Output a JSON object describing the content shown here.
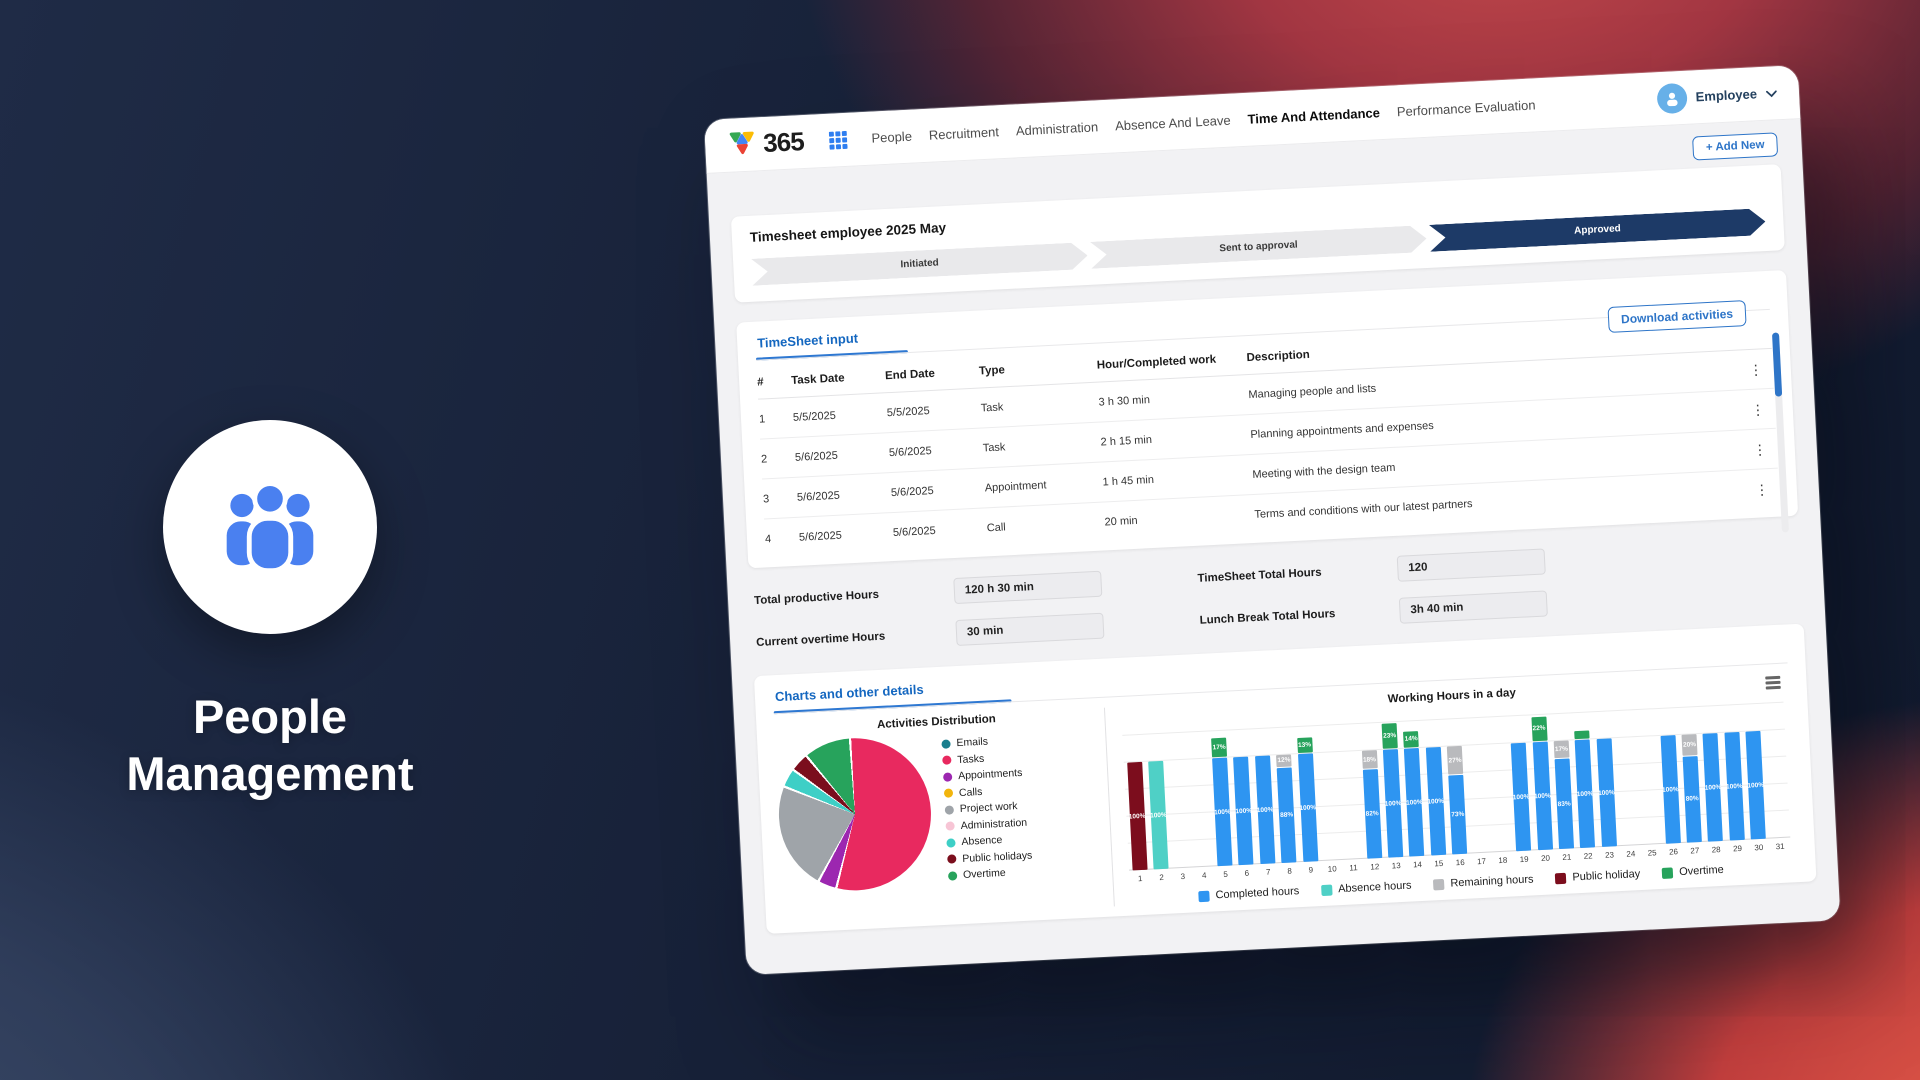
{
  "hero": {
    "title_line1": "People",
    "title_line2": "Management"
  },
  "window": {
    "brand": "365",
    "nav_items": [
      "People",
      "Recruitment",
      "Administration",
      "Absence And Leave",
      "Time And Attendance",
      "Performance Evaluation"
    ],
    "active_nav": "Time And Attendance",
    "user_menu": {
      "label": "Employee"
    },
    "add_new_label": "+ Add New",
    "timesheet_card": {
      "title": "Timesheet employee 2025 May",
      "steps": [
        {
          "label": "Initiated",
          "status": "inactive"
        },
        {
          "label": "Sent to approval",
          "status": "inactive"
        },
        {
          "label": "Approved",
          "status": "active"
        }
      ]
    },
    "table_card": {
      "tab_label": "TimeSheet input",
      "download_label": "Download activities",
      "columns": [
        "#",
        "Task Date",
        "End Date",
        "Type",
        "Hour/Completed work",
        "Description"
      ],
      "rows": [
        {
          "num": "1",
          "task_date": "5/5/2025",
          "end_date": "5/5/2025",
          "type": "Task",
          "hours": "3 h 30 min",
          "description": "Managing people and lists"
        },
        {
          "num": "2",
          "task_date": "5/6/2025",
          "end_date": "5/6/2025",
          "type": "Task",
          "hours": "2 h 15 min",
          "description": "Planning appointments and expenses"
        },
        {
          "num": "3",
          "task_date": "5/6/2025",
          "end_date": "5/6/2025",
          "type": "Appointment",
          "hours": "1 h 45 min",
          "description": "Meeting with the design team"
        },
        {
          "num": "4",
          "task_date": "5/6/2025",
          "end_date": "5/6/2025",
          "type": "Call",
          "hours": "20 min",
          "description": "Terms and conditions with our latest partners"
        }
      ]
    },
    "totals": [
      {
        "label": "Total productive Hours",
        "value": "120 h 30 min"
      },
      {
        "label": "TimeSheet Total Hours",
        "value": "120"
      },
      {
        "label": "Current overtime Hours",
        "value": "30 min"
      },
      {
        "label": "Lunch Break Total Hours",
        "value": "3h 40 min"
      }
    ],
    "charts_card": {
      "tab_label": "Charts and other details"
    }
  },
  "chart_data": [
    {
      "type": "pie",
      "title": "Activities Distribution",
      "legend_position": "right",
      "slices": [
        {
          "label": "Emails",
          "value": 0,
          "color": "#1a7f8e"
        },
        {
          "label": "Tasks",
          "value": 55,
          "color": "#e8295f"
        },
        {
          "label": "Appointments",
          "value": 4,
          "color": "#9c27b0"
        },
        {
          "label": "Calls",
          "value": 0,
          "color": "#f2b50d"
        },
        {
          "label": "Project work",
          "value": 23,
          "color": "#9fa4a9"
        },
        {
          "label": "Administration",
          "value": 0,
          "color": "#f7c5d5"
        },
        {
          "label": "Absence",
          "value": 4,
          "color": "#3ecfc6"
        },
        {
          "label": "Public holidays",
          "value": 4,
          "color": "#7b0e1d"
        },
        {
          "label": "Overtime",
          "value": 10,
          "color": "#27a35c"
        }
      ]
    },
    {
      "type": "bar",
      "stacked": true,
      "title": "Working Hours in a day",
      "ylim": [
        0,
        125
      ],
      "grid": true,
      "colors": {
        "completed": "#2e95f1",
        "absence": "#4fd0c6",
        "remaining": "#b9babd",
        "holiday": "#7c0d1d",
        "overtime": "#27a35c"
      },
      "legend": [
        {
          "key": "completed",
          "label": "Completed hours"
        },
        {
          "key": "absence",
          "label": "Absence hours"
        },
        {
          "key": "remaining",
          "label": "Remaining hours"
        },
        {
          "key": "holiday",
          "label": "Public holiday"
        },
        {
          "key": "overtime",
          "label": "Overtime"
        }
      ],
      "days": [
        {
          "d": 1,
          "holiday": 100
        },
        {
          "d": 2,
          "absence": 100
        },
        {
          "d": 3
        },
        {
          "d": 4
        },
        {
          "d": 5,
          "completed": 100,
          "overtime": 17
        },
        {
          "d": 6,
          "completed": 100
        },
        {
          "d": 7,
          "completed": 100
        },
        {
          "d": 8,
          "completed": 88,
          "remaining": 12
        },
        {
          "d": 9,
          "completed": 100,
          "overtime": 13
        },
        {
          "d": 10
        },
        {
          "d": 11
        },
        {
          "d": 12,
          "completed": 82,
          "remaining": 18
        },
        {
          "d": 13,
          "completed": 100,
          "overtime": 23
        },
        {
          "d": 14,
          "completed": 100,
          "overtime": 14
        },
        {
          "d": 15,
          "completed": 100
        },
        {
          "d": 16,
          "completed": 73,
          "remaining": 27
        },
        {
          "d": 17
        },
        {
          "d": 18
        },
        {
          "d": 19,
          "completed": 100
        },
        {
          "d": 20,
          "completed": 100,
          "overtime": 22
        },
        {
          "d": 21,
          "completed": 83,
          "remaining": 17
        },
        {
          "d": 22,
          "completed": 100,
          "overtime": 7
        },
        {
          "d": 23,
          "completed": 100
        },
        {
          "d": 24
        },
        {
          "d": 25
        },
        {
          "d": 26,
          "completed": 100
        },
        {
          "d": 27,
          "completed": 80,
          "remaining": 20
        },
        {
          "d": 28,
          "completed": 100
        },
        {
          "d": 29,
          "completed": 100
        },
        {
          "d": 30,
          "completed": 100
        },
        {
          "d": 31
        }
      ]
    }
  ]
}
